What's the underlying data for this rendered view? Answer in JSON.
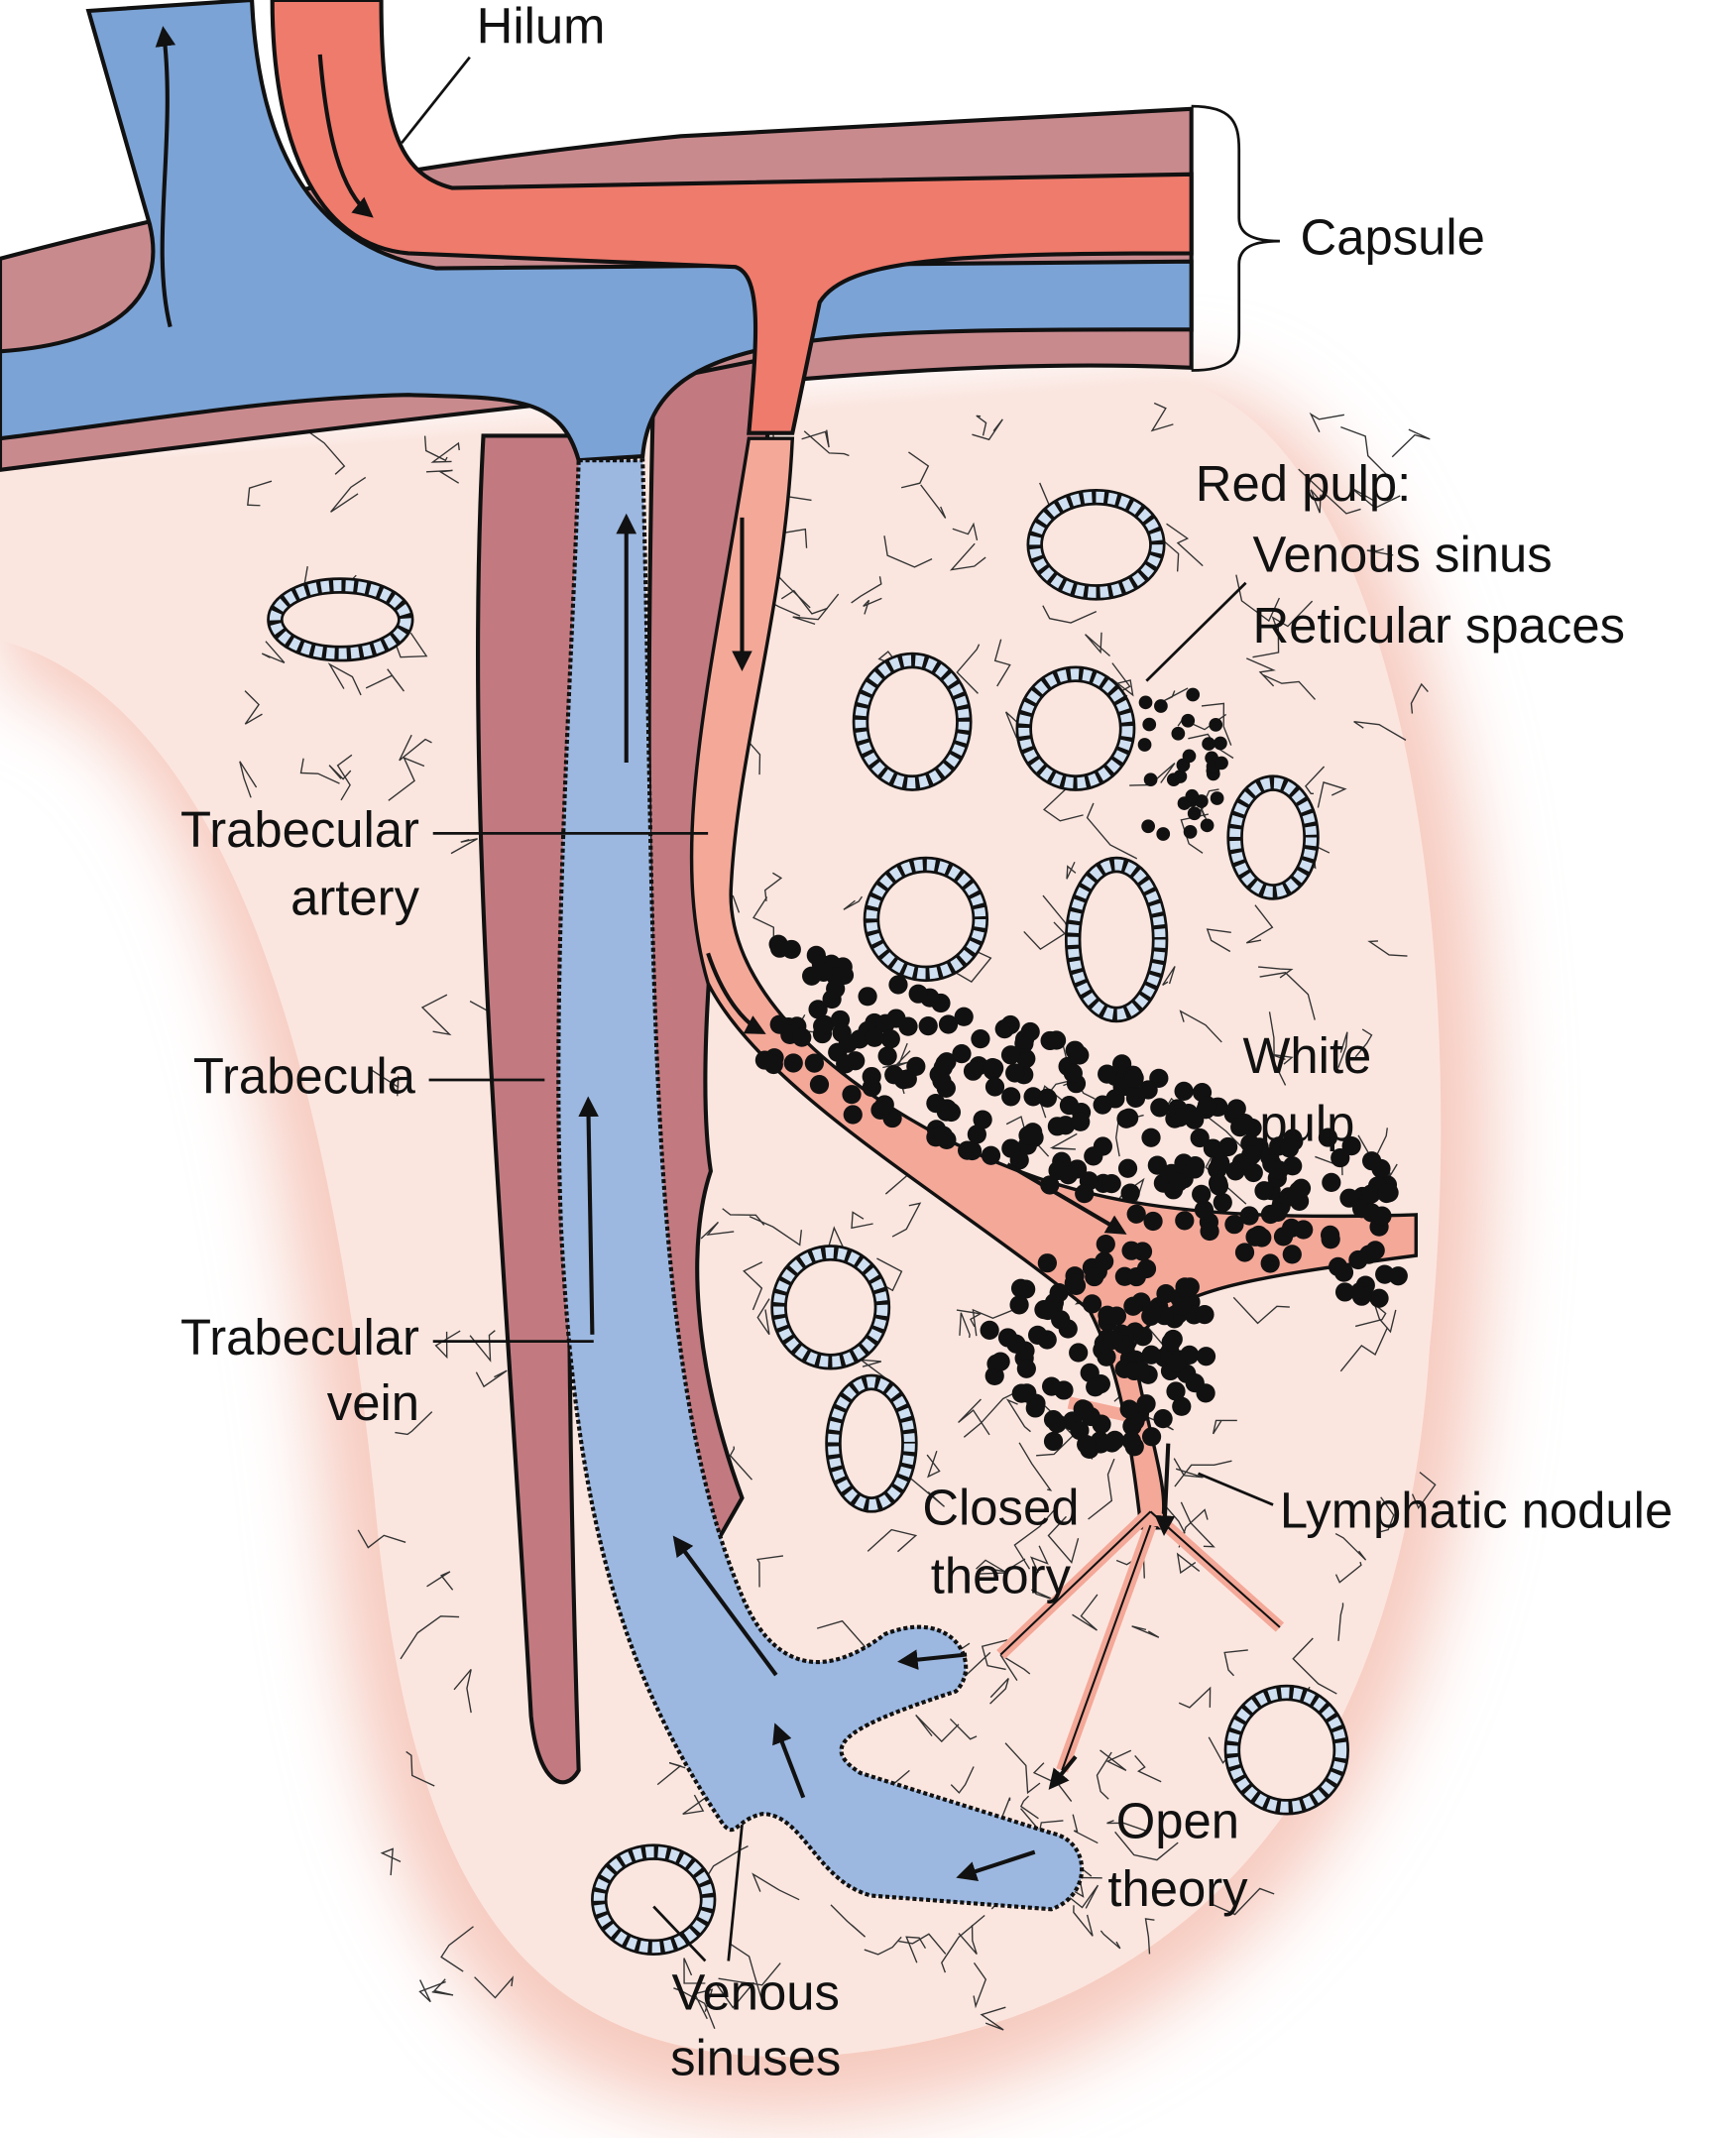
{
  "labels": {
    "hilum": "Hilum",
    "capsule": "Capsule",
    "red_pulp": [
      "Red pulp:",
      "Venous sinus",
      "Reticular spaces"
    ],
    "trabecular_artery": [
      "Trabecular",
      "artery"
    ],
    "trabecula": "Trabecula",
    "trabecular_vein": [
      "Trabecular",
      "vein"
    ],
    "white_pulp": [
      "White",
      "pulp"
    ],
    "lymphatic_nodule": "Lymphatic nodule",
    "closed_theory": [
      "Closed",
      "theory"
    ],
    "open_theory": [
      "Open",
      "theory"
    ],
    "venous_sinuses": [
      "Venous",
      "sinuses"
    ]
  }
}
